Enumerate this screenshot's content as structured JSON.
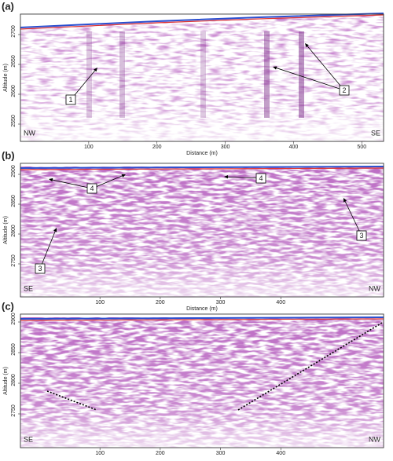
{
  "panels": [
    {
      "label": "(a)",
      "y_axis_title": "Altitude (m)",
      "x_axis_title": "Distance (m)",
      "yticks": [
        2700,
        2650,
        2600,
        2550
      ],
      "xticks": [
        100,
        200,
        300,
        400,
        500
      ],
      "left_label": "NW",
      "right_label": "SE",
      "callouts": [
        "1",
        "2"
      ]
    },
    {
      "label": "(b)",
      "y_axis_title": "Altitude (m)",
      "x_axis_title": "Distance (m)",
      "yticks": [
        2900,
        2850,
        2800,
        2750
      ],
      "xticks": [
        100,
        200,
        300,
        400
      ],
      "left_label": "SE",
      "right_label": "NW",
      "callouts": [
        "4",
        "4",
        "3",
        "3"
      ]
    },
    {
      "label": "(c)",
      "y_axis_title": "Altitude (m)",
      "yticks": [
        2900,
        2850,
        2800,
        2750
      ],
      "xticks": [
        100,
        200,
        300,
        400
      ],
      "left_label": "SE",
      "right_label": "NW"
    }
  ]
}
